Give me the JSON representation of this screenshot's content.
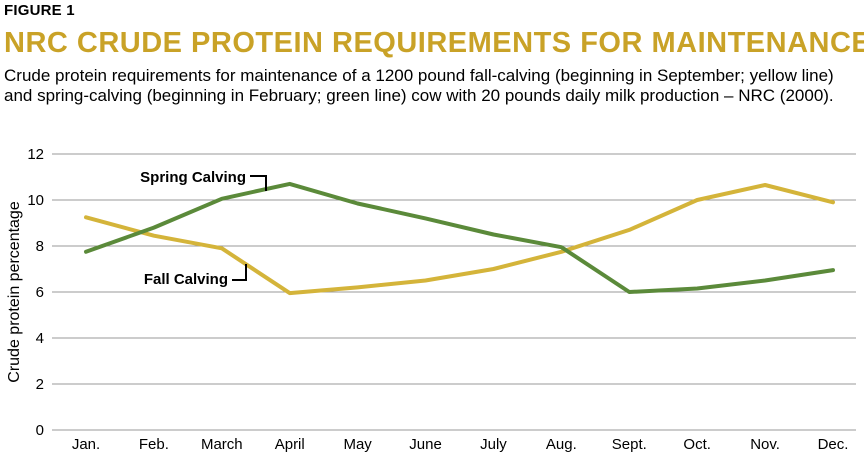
{
  "figure_label": "FIGURE 1",
  "title": "NRC CRUDE PROTEIN REQUIREMENTS FOR MAINTENANCE",
  "caption": "Crude protein requirements for maintenance of a 1200 pound fall-calving (beginning in September; yellow line) and spring-calving (beginning in February; green line) cow with 20 pounds daily milk production – NRC (2000).",
  "colors": {
    "title": "#c9a227",
    "fall": "#d4b43a",
    "spring": "#5b8a3a",
    "grid": "#9a9a9a"
  },
  "chart_data": {
    "type": "line",
    "categories": [
      "Jan.",
      "Feb.",
      "March",
      "April",
      "May",
      "June",
      "July",
      "Aug.",
      "Sept.",
      "Oct.",
      "Nov.",
      "Dec."
    ],
    "series": [
      {
        "name": "Spring Calving",
        "color": "#5b8a3a",
        "values": [
          7.75,
          8.8,
          10.05,
          10.7,
          9.85,
          9.2,
          8.5,
          7.95,
          6.0,
          6.15,
          6.5,
          6.95
        ]
      },
      {
        "name": "Fall Calving",
        "color": "#d4b43a",
        "values": [
          9.25,
          8.45,
          7.9,
          5.95,
          6.2,
          6.5,
          7.0,
          7.75,
          8.7,
          10.0,
          10.65,
          9.9
        ]
      }
    ],
    "xlabel": "",
    "ylabel": "Crude protein percentage",
    "ylim": [
      0,
      12
    ],
    "yticks": [
      0,
      2,
      4,
      6,
      8,
      10,
      12
    ],
    "grid": true,
    "legend": "inline annotations"
  }
}
